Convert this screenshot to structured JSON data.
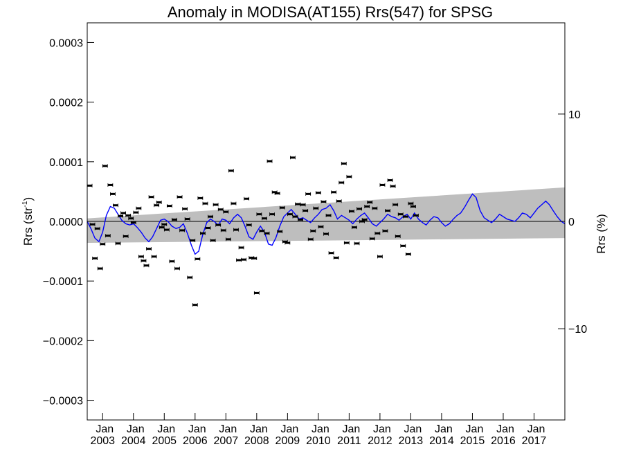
{
  "chart_data": {
    "type": "scatter",
    "title": "Anomaly in MODISA(AT155) Rrs(547) for SPSG",
    "ylabel": "Rrs (str",
    "ylabel_sup": "-1",
    "ylabel_close": ")",
    "y2label": "Rrs (%)",
    "xlim": [
      2002.5,
      2018.0
    ],
    "ylim": [
      -0.000333,
      0.000333
    ],
    "y2lim": [
      -18.5,
      18.5
    ],
    "yticks": [
      {
        "value": 0.0003,
        "label": "0.0003"
      },
      {
        "value": 0.0002,
        "label": "0.0002"
      },
      {
        "value": 0.0001,
        "label": "0.0001"
      },
      {
        "value": 0.0,
        "label": "0.0000"
      },
      {
        "value": -0.0001,
        "label": "−0.0001"
      },
      {
        "value": -0.0002,
        "label": "−0.0002"
      },
      {
        "value": -0.0003,
        "label": "−0.0003"
      }
    ],
    "y2ticks": [
      {
        "value": 10,
        "label": "10"
      },
      {
        "value": 0,
        "label": "0"
      },
      {
        "value": -10,
        "label": "−10"
      }
    ],
    "xticks": [
      {
        "value": 2003,
        "month": "Jan",
        "year": "2003"
      },
      {
        "value": 2004,
        "month": "Jan",
        "year": "2004"
      },
      {
        "value": 2005,
        "month": "Jan",
        "year": "2005"
      },
      {
        "value": 2006,
        "month": "Jan",
        "year": "2006"
      },
      {
        "value": 2007,
        "month": "Jan",
        "year": "2007"
      },
      {
        "value": 2008,
        "month": "Jan",
        "year": "2008"
      },
      {
        "value": 2009,
        "month": "Jan",
        "year": "2009"
      },
      {
        "value": 2010,
        "month": "Jan",
        "year": "2010"
      },
      {
        "value": 2011,
        "month": "Jan",
        "year": "2011"
      },
      {
        "value": 2012,
        "month": "Jan",
        "year": "2012"
      },
      {
        "value": 2013,
        "month": "Jan",
        "year": "2013"
      },
      {
        "value": 2014,
        "month": "Jan",
        "year": "2014"
      },
      {
        "value": 2015,
        "month": "Jan",
        "year": "2015"
      },
      {
        "value": 2016,
        "month": "Jan",
        "year": "2016"
      },
      {
        "value": 2017,
        "month": "Jan",
        "year": "2017"
      }
    ],
    "band": {
      "upper": [
        [
          2002.5,
          5e-06
        ],
        [
          2018.0,
          5.7e-05
        ]
      ],
      "lower": [
        [
          2002.5,
          -3.6e-05
        ],
        [
          2018.0,
          -2.8e-05
        ]
      ],
      "color": "#bebebe"
    },
    "zero_line": 0.0,
    "points": {
      "color": "#000000",
      "values": [
        [
          2002.58,
          6e-05
        ],
        [
          2002.67,
          -5e-06
        ],
        [
          2002.75,
          -6.2e-05
        ],
        [
          2002.83,
          -1.2e-05
        ],
        [
          2002.92,
          -7.9e-05
        ],
        [
          2003.0,
          -3.8e-05
        ],
        [
          2003.08,
          9.3e-05
        ],
        [
          2003.17,
          -2.4e-05
        ],
        [
          2003.25,
          6.1e-05
        ],
        [
          2003.33,
          4.6e-05
        ],
        [
          2003.42,
          2.7e-05
        ],
        [
          2003.5,
          -3.7e-05
        ],
        [
          2003.58,
          9e-06
        ],
        [
          2003.67,
          1.4e-05
        ],
        [
          2003.75,
          -2.5e-05
        ],
        [
          2003.83,
          1e-05
        ],
        [
          2003.92,
          5e-06
        ],
        [
          2004.0,
          -2e-06
        ],
        [
          2004.08,
          1.5e-05
        ],
        [
          2004.17,
          2.2e-05
        ],
        [
          2004.25,
          -5.9e-05
        ],
        [
          2004.33,
          -6.6e-05
        ],
        [
          2004.42,
          -7.4e-05
        ],
        [
          2004.5,
          -4.6e-05
        ],
        [
          2004.58,
          4.1e-05
        ],
        [
          2004.67,
          -5.9e-05
        ],
        [
          2004.75,
          2.7e-05
        ],
        [
          2004.83,
          3.2e-05
        ],
        [
          2004.92,
          -1e-05
        ],
        [
          2005.0,
          -5e-06
        ],
        [
          2005.08,
          -1.4e-05
        ],
        [
          2005.17,
          2.6e-05
        ],
        [
          2005.25,
          -6.7e-05
        ],
        [
          2005.33,
          3e-06
        ],
        [
          2005.42,
          -7.9e-05
        ],
        [
          2005.5,
          4.1e-05
        ],
        [
          2005.58,
          -1.5e-05
        ],
        [
          2005.67,
          2.1e-05
        ],
        [
          2005.75,
          4e-06
        ],
        [
          2005.83,
          -9.4e-05
        ],
        [
          2005.92,
          -3.2e-05
        ],
        [
          2006.0,
          -0.00014
        ],
        [
          2006.08,
          -6.3e-05
        ],
        [
          2006.17,
          3.9e-05
        ],
        [
          2006.25,
          -2e-05
        ],
        [
          2006.33,
          3e-05
        ],
        [
          2006.42,
          -1.1e-05
        ],
        [
          2006.5,
          8e-06
        ],
        [
          2006.58,
          -3.2e-05
        ],
        [
          2006.67,
          2.8e-05
        ],
        [
          2006.75,
          -6e-06
        ],
        [
          2006.83,
          2e-05
        ],
        [
          2006.92,
          -1.5e-05
        ],
        [
          2007.0,
          1.6e-05
        ],
        [
          2007.08,
          -3e-05
        ],
        [
          2007.17,
          8.5e-05
        ],
        [
          2007.25,
          3e-05
        ],
        [
          2007.33,
          -1.4e-05
        ],
        [
          2007.42,
          -6.5e-05
        ],
        [
          2007.5,
          -4.4e-05
        ],
        [
          2007.58,
          -6.4e-05
        ],
        [
          2007.67,
          3.8e-05
        ],
        [
          2007.75,
          -6e-06
        ],
        [
          2007.83,
          -6.1e-05
        ],
        [
          2007.92,
          -6.2e-05
        ],
        [
          2008.0,
          -0.00012
        ],
        [
          2008.08,
          1.2e-05
        ],
        [
          2008.17,
          -1.6e-05
        ],
        [
          2008.25,
          5e-06
        ],
        [
          2008.33,
          -2e-05
        ],
        [
          2008.42,
          0.000101
        ],
        [
          2008.5,
          1.2e-05
        ],
        [
          2008.58,
          4.9e-05
        ],
        [
          2008.67,
          4.7e-05
        ],
        [
          2008.75,
          -1.7e-05
        ],
        [
          2008.83,
          2.3e-05
        ],
        [
          2008.92,
          -3.4e-05
        ],
        [
          2009.0,
          -3.6e-05
        ],
        [
          2009.08,
          1.2e-05
        ],
        [
          2009.17,
          0.000107
        ],
        [
          2009.25,
          8e-06
        ],
        [
          2009.33,
          2.9e-05
        ],
        [
          2009.42,
          3e-06
        ],
        [
          2009.5,
          2.8e-05
        ],
        [
          2009.58,
          1.8e-05
        ],
        [
          2009.67,
          4.6e-05
        ],
        [
          2009.75,
          -3e-05
        ],
        [
          2009.83,
          -1.6e-05
        ],
        [
          2009.92,
          2.2e-05
        ],
        [
          2010.0,
          4.8e-05
        ],
        [
          2010.08,
          -9e-06
        ],
        [
          2010.17,
          3.3e-05
        ],
        [
          2010.25,
          -2.1e-05
        ],
        [
          2010.33,
          1e-05
        ],
        [
          2010.42,
          -5.3e-05
        ],
        [
          2010.5,
          4.9e-05
        ],
        [
          2010.58,
          -6.1e-05
        ],
        [
          2010.67,
          3.4e-05
        ],
        [
          2010.75,
          6.5e-05
        ],
        [
          2010.83,
          9.7e-05
        ],
        [
          2010.92,
          -3.6e-05
        ],
        [
          2011.0,
          7.5e-05
        ],
        [
          2011.08,
          1.7e-05
        ],
        [
          2011.17,
          -1e-05
        ],
        [
          2011.25,
          -3.7e-05
        ],
        [
          2011.33,
          2.1e-05
        ],
        [
          2011.42,
          0.0
        ],
        [
          2011.5,
          3e-06
        ],
        [
          2011.58,
          2.5e-05
        ],
        [
          2011.67,
          3.2e-05
        ],
        [
          2011.75,
          -2.9e-05
        ],
        [
          2011.83,
          2.2e-05
        ],
        [
          2011.92,
          -2e-05
        ],
        [
          2012.0,
          -5.9e-05
        ],
        [
          2012.08,
          6.1e-05
        ],
        [
          2012.17,
          -1.6e-05
        ],
        [
          2012.25,
          1.8e-05
        ],
        [
          2012.33,
          6.9e-05
        ],
        [
          2012.42,
          5.9e-05
        ],
        [
          2012.5,
          2.8e-05
        ],
        [
          2012.58,
          -2.5e-05
        ],
        [
          2012.67,
          1.2e-05
        ],
        [
          2012.75,
          -4.1e-05
        ],
        [
          2012.83,
          8e-06
        ],
        [
          2012.92,
          -5.5e-05
        ],
        [
          2013.0,
          3e-05
        ],
        [
          2013.08,
          2.5e-05
        ],
        [
          2013.17,
          1e-05
        ]
      ]
    },
    "smoothed_line": {
      "color": "#0000ff",
      "x": [
        2002.5,
        2002.62,
        2002.75,
        2002.88,
        2003.0,
        2003.12,
        2003.25,
        2003.38,
        2003.5,
        2003.62,
        2003.75,
        2003.88,
        2004.0,
        2004.12,
        2004.25,
        2004.38,
        2004.5,
        2004.62,
        2004.75,
        2004.88,
        2005.0,
        2005.12,
        2005.25,
        2005.38,
        2005.5,
        2005.62,
        2005.75,
        2005.88,
        2006.0,
        2006.12,
        2006.25,
        2006.38,
        2006.5,
        2006.62,
        2006.75,
        2006.88,
        2007.0,
        2007.12,
        2007.25,
        2007.38,
        2007.5,
        2007.62,
        2007.75,
        2007.88,
        2008.0,
        2008.12,
        2008.25,
        2008.38,
        2008.5,
        2008.62,
        2008.75,
        2008.88,
        2009.0,
        2009.12,
        2009.25,
        2009.38,
        2009.5,
        2009.62,
        2009.75,
        2009.88,
        2010.0,
        2010.12,
        2010.25,
        2010.38,
        2010.5,
        2010.62,
        2010.75,
        2010.88,
        2011.0,
        2011.12,
        2011.25,
        2011.38,
        2011.5,
        2011.62,
        2011.75,
        2011.88,
        2012.0,
        2012.12,
        2012.25,
        2012.38,
        2012.5,
        2012.62,
        2012.75,
        2012.88,
        2013.0,
        2013.12,
        2013.25,
        2013.38,
        2013.5,
        2013.62,
        2013.75,
        2013.88,
        2014.0,
        2014.12,
        2014.25,
        2014.38,
        2014.5,
        2014.62,
        2014.75,
        2014.88,
        2015.0,
        2015.12,
        2015.25,
        2015.38,
        2015.5,
        2015.62,
        2015.75,
        2015.88,
        2016.0,
        2016.12,
        2016.25,
        2016.38,
        2016.5,
        2016.62,
        2016.75,
        2016.88,
        2017.0,
        2017.12,
        2017.25,
        2017.38,
        2017.5,
        2017.62,
        2017.75,
        2017.88,
        2018.0
      ],
      "y": [
        0.0,
        -1.2e-05,
        -2.8e-05,
        -3.4e-05,
        -1.8e-05,
        1e-05,
        2.5e-05,
        2.2e-05,
        1.2e-05,
        2e-06,
        -4e-06,
        -6e-06,
        -4e-06,
        -1e-05,
        -1.8e-05,
        -2.8e-05,
        -3.4e-05,
        -2.6e-05,
        -1.2e-05,
        2e-06,
        4e-06,
        0.0,
        -8e-06,
        -1.2e-05,
        -1e-05,
        -4e-06,
        -2e-05,
        -4e-05,
        -5.5e-05,
        -5e-05,
        -2.2e-05,
        -2e-06,
        4e-06,
        0.0,
        -6e-06,
        4e-06,
        2e-06,
        -4e-06,
        6e-06,
        1.2e-05,
        6e-06,
        -8e-06,
        -2.6e-05,
        -3e-05,
        -1.8e-05,
        -8e-06,
        -1.8e-05,
        -3.8e-05,
        -4e-05,
        -2.8e-05,
        -8e-06,
        8e-06,
        1.4e-05,
        2e-05,
        1.2e-05,
        4e-06,
        6e-06,
        2e-06,
        -2e-06,
        6e-06,
        1.2e-05,
        2e-05,
        2.2e-05,
        2.8e-05,
        1.8e-05,
        4e-06,
        1e-05,
        6e-06,
        2e-06,
        -4e-06,
        4e-06,
        1e-05,
        1.4e-05,
        6e-06,
        -4e-06,
        -8e-06,
        -2e-06,
        4e-06,
        1.2e-05,
        8e-06,
        6e-06,
        2e-06,
        8e-06,
        1.2e-05,
        4e-06,
        1.4e-05,
        4e-06,
        -2e-06,
        -6e-06,
        2e-06,
        8e-06,
        6e-06,
        -2e-06,
        -8e-06,
        -4e-06,
        4e-06,
        1e-05,
        1.4e-05,
        2.4e-05,
        3.6e-05,
        4.6e-05,
        4e-05,
        1.8e-05,
        6e-06,
        2e-06,
        -2e-06,
        4e-06,
        1.2e-05,
        8e-06,
        4e-06,
        2e-06,
        0.0,
        6e-06,
        1.4e-05,
        1.2e-05,
        6e-06,
        1.4e-05,
        2.2e-05,
        2.8e-05,
        3.4e-05,
        2.8e-05,
        1.8e-05,
        8e-06,
        0.0,
        -4e-06
      ]
    }
  }
}
